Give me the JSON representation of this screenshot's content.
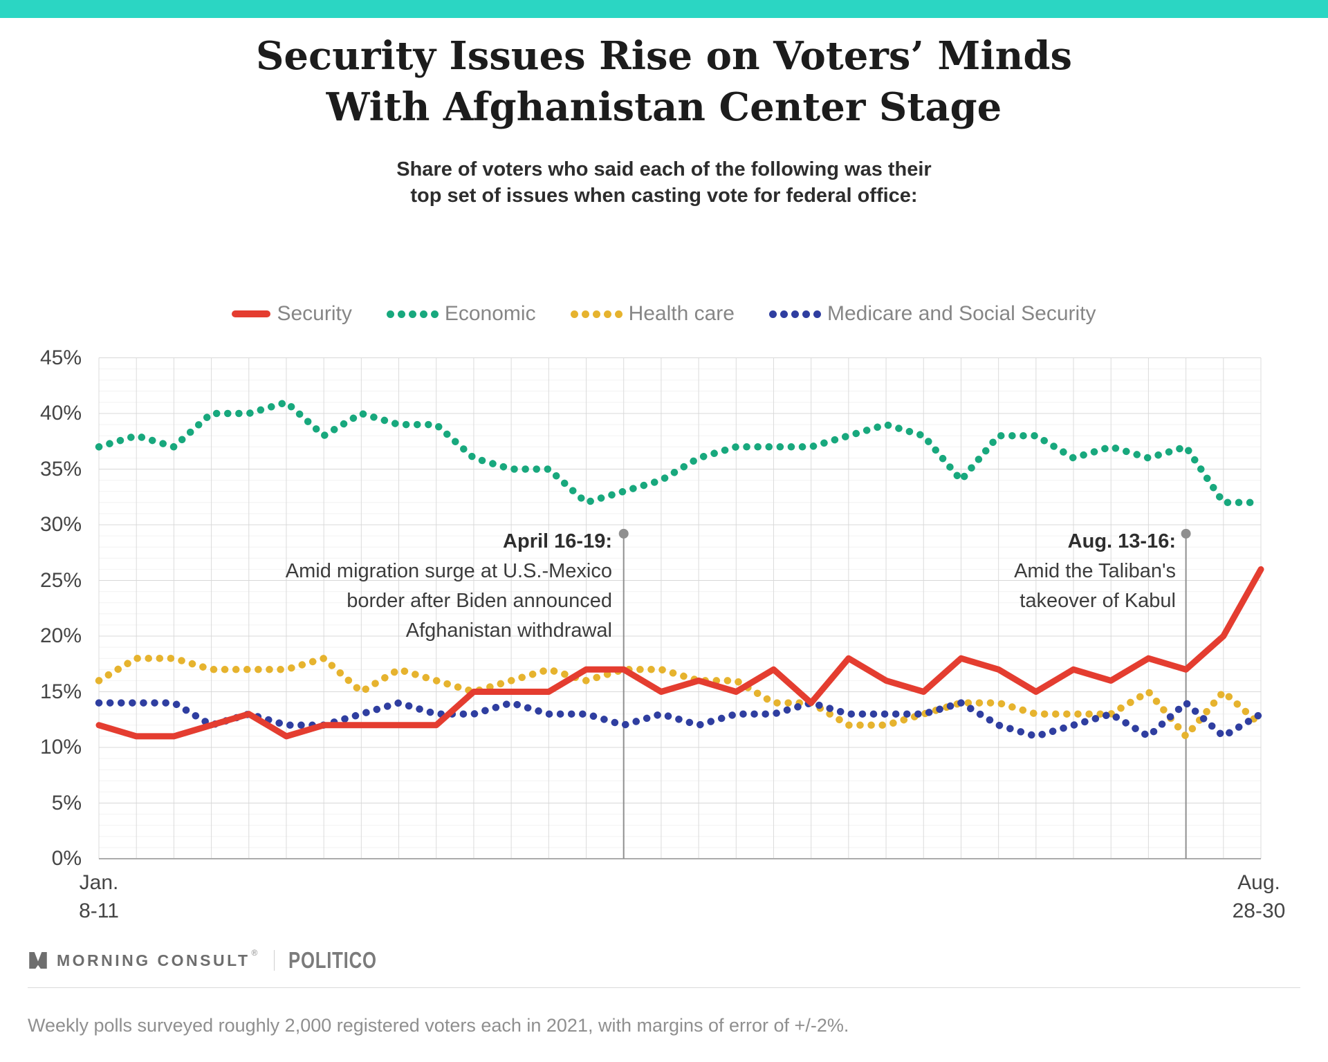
{
  "accent_bar_color": "#2bd6c3",
  "header": {
    "title_line1": "Security Issues Rise on Voters’ Minds",
    "title_line2": "With Afghanistan Center Stage",
    "subtitle_line1": "Share of voters who said each of the following was their",
    "subtitle_line2": "top set of issues when casting vote for federal office:"
  },
  "chart_data": {
    "type": "line",
    "x_axis": {
      "points": 32,
      "first_tick": [
        "Jan.",
        "8-11"
      ],
      "last_tick": [
        "Aug.",
        "28-30"
      ]
    },
    "y_axis": {
      "min": 0,
      "max": 45,
      "major_step": 5,
      "minor_step": 1,
      "tick_suffix": "%"
    },
    "grid": {
      "weekly_vertical_color": "#dbdbdb",
      "major_color": "#d8d8d8",
      "minor_color": "#f2f2f2",
      "baseline_color": "#ababab"
    },
    "annotation_color": "#8f8f8f",
    "series": [
      {
        "name": "Security",
        "color": "#e43d30",
        "style": "solid",
        "values": [
          12,
          11,
          11,
          12,
          13,
          11,
          12,
          12,
          12,
          12,
          15,
          15,
          15,
          17,
          17,
          15,
          16,
          15,
          17,
          14,
          18,
          16,
          15,
          18,
          17,
          15,
          17,
          16,
          18,
          17,
          20,
          26
        ]
      },
      {
        "name": "Economic",
        "color": "#18a87d",
        "style": "dotted",
        "values": [
          37,
          38,
          37,
          40,
          40,
          41,
          38,
          40,
          39,
          39,
          36,
          35,
          35,
          32,
          33,
          34,
          36,
          37,
          37,
          37,
          38,
          39,
          38,
          34,
          38,
          38,
          36,
          37,
          36,
          37,
          32,
          32
        ]
      },
      {
        "name": "Health care",
        "color": "#e6b32e",
        "style": "dotted",
        "values": [
          16,
          18,
          18,
          17,
          17,
          17,
          18,
          15,
          17,
          16,
          15,
          16,
          17,
          16,
          17,
          17,
          16,
          16,
          14,
          14,
          12,
          12,
          13,
          14,
          14,
          13,
          13,
          13,
          15,
          11,
          15,
          12
        ]
      },
      {
        "name": "Medicare and Social Security",
        "color": "#2f3ea0",
        "style": "dotted",
        "values": [
          14,
          14,
          14,
          12,
          13,
          12,
          12,
          13,
          14,
          13,
          13,
          14,
          13,
          13,
          12,
          13,
          12,
          13,
          13,
          14,
          13,
          13,
          13,
          14,
          12,
          11,
          12,
          13,
          11,
          14,
          11,
          13
        ]
      }
    ],
    "annotations": [
      {
        "at_point": 14,
        "line_top_value": 29.2,
        "head": "April 16-19:",
        "body_lines": [
          "Amid migration surge at U.S.-Mexico",
          "border after Biden announced",
          "Afghanistan withdrawal"
        ]
      },
      {
        "at_point": 29,
        "line_top_value": 29.2,
        "head": "Aug. 13-16:",
        "body_lines": [
          "Amid the Taliban's",
          "takeover of Kabul"
        ]
      }
    ]
  },
  "footer": {
    "brand": "MORNING CONSULT",
    "reg": "®",
    "partner": "POLITICO",
    "note": "Weekly polls surveyed roughly 2,000 registered voters each in 2021, with margins of error of +/-2%."
  }
}
